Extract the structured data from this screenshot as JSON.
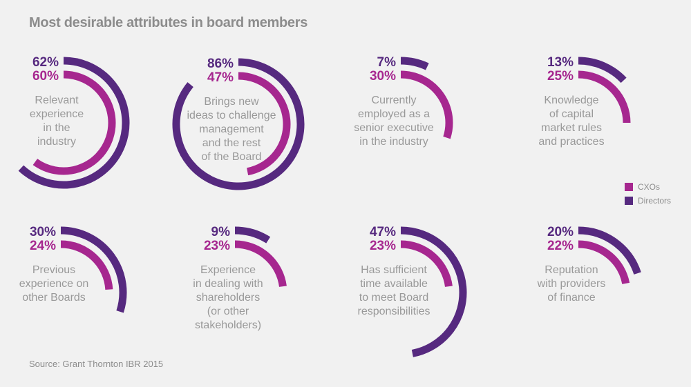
{
  "chart_data": {
    "type": "radial-bar",
    "title": "Most desirable attributes in board members",
    "source": "Source: Grant Thornton IBR 2015",
    "legend": {
      "placement": "right",
      "entries": [
        {
          "name": "CXOs",
          "color": "#a6278f"
        },
        {
          "name": "Directors",
          "color": "#56297f"
        }
      ]
    },
    "unit": "%",
    "max": 100,
    "items": [
      {
        "label": "Relevant experience in the industry",
        "lines": [
          "Relevant",
          "experience",
          "in the",
          "industry"
        ],
        "Directors": 62,
        "CXOs": 60
      },
      {
        "label": "Brings new ideas to challenge management and the rest of the Board",
        "lines": [
          "Brings new",
          "ideas to challenge",
          "management",
          "and the rest",
          "of the Board"
        ],
        "Directors": 86,
        "CXOs": 47
      },
      {
        "label": "Currently employed as a senior executive in the industry",
        "lines": [
          "Currently",
          "employed as a",
          "senior executive",
          "in the industry"
        ],
        "Directors": 7,
        "CXOs": 30
      },
      {
        "label": "Knowledge of capital market rules and practices",
        "lines": [
          "Knowledge",
          "of capital",
          "market rules",
          "and practices"
        ],
        "Directors": 13,
        "CXOs": 25
      },
      {
        "label": "Previous experience on other Boards",
        "lines": [
          "Previous",
          "experience on",
          "other Boards"
        ],
        "Directors": 30,
        "CXOs": 24
      },
      {
        "label": "Experience in dealing with shareholders (or other stakeholders)",
        "lines": [
          "Experience",
          "in dealing with",
          "shareholders",
          "(or other",
          "stakeholders)"
        ],
        "Directors": 9,
        "CXOs": 23
      },
      {
        "label": "Has sufficient time available to meet Board responsibilities",
        "lines": [
          "Has sufficient",
          "time available",
          "to meet Board",
          "responsibilities"
        ],
        "Directors": 47,
        "CXOs": 23
      },
      {
        "label": "Reputation with providers of finance",
        "lines": [
          "Reputation",
          "with providers",
          "of finance"
        ],
        "Directors": 20,
        "CXOs": 22
      }
    ]
  }
}
